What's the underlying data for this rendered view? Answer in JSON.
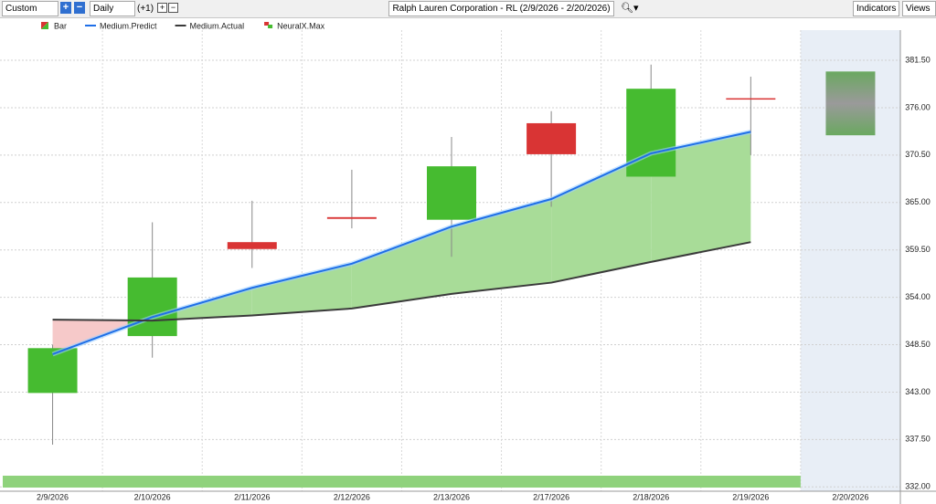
{
  "toolbar": {
    "period": "Custom",
    "interval": "Daily",
    "offset": "(+1)",
    "title": "Ralph Lauren Corporation - RL (2/9/2026 - 2/20/2026)",
    "indicators": "Indicators",
    "views": "Views"
  },
  "chart_data": {
    "type": "candlestick",
    "categories": [
      "2/9/2026",
      "2/10/2026",
      "2/11/2026",
      "2/12/2026",
      "2/13/2026",
      "2/17/2026",
      "2/18/2026",
      "2/19/2026",
      "2/20/2026"
    ],
    "series": [
      {
        "name": "Bar",
        "type": "candlestick",
        "up_color": "#46bb30",
        "down_color": "#d93434",
        "open": [
          342.9,
          349.5,
          360.4,
          363.3,
          363.0,
          374.2,
          368.0,
          377.1,
          null
        ],
        "high": [
          348.5,
          362.7,
          365.2,
          368.8,
          372.6,
          375.6,
          381.0,
          379.6,
          null
        ],
        "low": [
          336.9,
          347.0,
          357.4,
          362.0,
          358.7,
          364.5,
          368.0,
          370.5,
          null
        ],
        "close": [
          348.1,
          356.3,
          359.6,
          363.1,
          369.2,
          370.6,
          378.2,
          377.0,
          null
        ]
      },
      {
        "name": "Medium.Predict",
        "type": "line",
        "color": "#1f6fe8",
        "values": [
          347.4,
          351.7,
          355.1,
          357.9,
          362.2,
          365.4,
          370.7,
          373.2,
          null
        ]
      },
      {
        "name": "Medium.Actual",
        "type": "line",
        "color": "#3a3a3a",
        "values": [
          351.4,
          351.3,
          351.9,
          352.7,
          354.4,
          355.7,
          358.1,
          360.4,
          null
        ]
      },
      {
        "name": "NeuralX.Max",
        "type": "range",
        "color": "#6aa860",
        "high": [
          null,
          null,
          null,
          null,
          null,
          null,
          null,
          null,
          380.2
        ],
        "low": [
          null,
          null,
          null,
          null,
          null,
          null,
          null,
          null,
          372.8
        ]
      }
    ],
    "ylim": [
      331.5,
      385
    ],
    "yticks": [
      {
        "value": 332,
        "label": "332.00"
      },
      {
        "value": 337.5,
        "label": "337.50"
      },
      {
        "value": 343,
        "label": "343.00"
      },
      {
        "value": 348.5,
        "label": "348.50"
      },
      {
        "value": 354,
        "label": "354.00"
      },
      {
        "value": 359.5,
        "label": "359.50"
      },
      {
        "value": 365,
        "label": "365.00"
      },
      {
        "value": 370.5,
        "label": "370.50"
      },
      {
        "value": 376,
        "label": "376.00"
      },
      {
        "value": 381.5,
        "label": "381.50"
      }
    ],
    "grid": true
  }
}
